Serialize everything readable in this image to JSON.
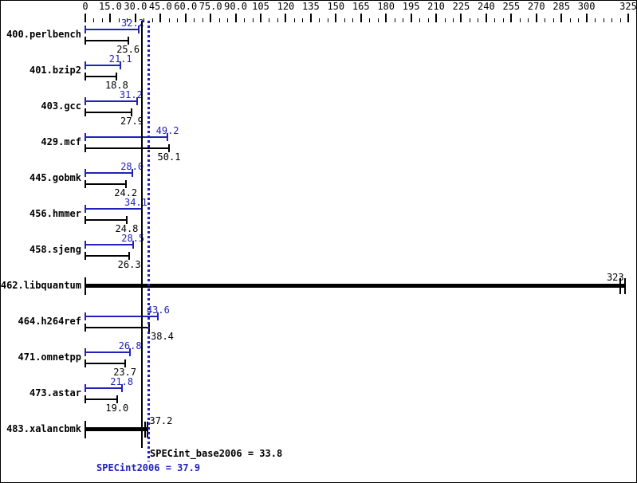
{
  "chart_data": {
    "type": "bar",
    "orientation": "horizontal",
    "axis": {
      "min": 0,
      "max": 325,
      "major_tick_step": 15,
      "minor_tick_step": 5,
      "major_tick_values": [
        0,
        15,
        30,
        45,
        60,
        75,
        90,
        105,
        120,
        135,
        150,
        165,
        180,
        195,
        210,
        225,
        240,
        255,
        270,
        285,
        300,
        325
      ],
      "major_tick_labels": [
        "0",
        "15.0",
        "30.0",
        "45.0",
        "60.0",
        "75.0",
        "90.0",
        "105",
        "120",
        "135",
        "150",
        "165",
        "180",
        "195",
        "210",
        "225",
        "240",
        "255",
        "270",
        "285",
        "300",
        "325"
      ]
    },
    "colors": {
      "peak": "#2222bb",
      "base": "#000000",
      "background": "#ffffff"
    },
    "grid": false,
    "legend": "none",
    "series": [
      {
        "name": "SPECint2006 (peak)",
        "color": "#2222bb"
      },
      {
        "name": "SPECint_base2006 (base)",
        "color": "#000000"
      }
    ],
    "benchmarks": [
      {
        "name": "400.perlbench",
        "peak": 32.2,
        "base": 25.6,
        "peak_label": "32.2",
        "base_label": "25.6",
        "peak_label_dx": -8
      },
      {
        "name": "401.bzip2",
        "peak": 21.1,
        "base": 18.8,
        "peak_label": "21.1",
        "base_label": "18.8"
      },
      {
        "name": "403.gcc",
        "peak": 31.2,
        "base": 27.9,
        "peak_label": "31.2",
        "base_label": "27.9",
        "peak_label_dx": -8
      },
      {
        "name": "429.mcf",
        "peak": 49.2,
        "base": 50.1,
        "peak_label": "49.2",
        "base_label": "50.1"
      },
      {
        "name": "445.gobmk",
        "peak": 28.0,
        "base": 24.2,
        "peak_label": "28.0",
        "base_label": "24.2"
      },
      {
        "name": "456.hmmer",
        "peak": 34.1,
        "base": 24.8,
        "peak_label": "34.1",
        "base_label": "24.8",
        "peak_label_dx": -8
      },
      {
        "name": "458.sjeng",
        "peak": 28.5,
        "base": 26.3,
        "peak_label": "28.5",
        "base_label": "26.3"
      },
      {
        "name": "462.libquantum",
        "base": 323,
        "base_label": "323",
        "merged": true,
        "caps": [
          320,
          323
        ],
        "base_label_dx": -12
      },
      {
        "name": "464.h264ref",
        "peak": 43.6,
        "base": 38.4,
        "peak_label": "43.6",
        "base_label": "38.4",
        "base_label_dx": 16
      },
      {
        "name": "471.omnetpp",
        "peak": 26.8,
        "base": 23.7,
        "peak_label": "26.8",
        "base_label": "23.7"
      },
      {
        "name": "473.astar",
        "peak": 21.8,
        "base": 19.0,
        "peak_label": "21.8",
        "base_label": "19.0"
      },
      {
        "name": "483.xalancbmk",
        "base": 37.2,
        "base_label": "37.2",
        "merged": true,
        "caps": [
          35.8,
          37.2
        ],
        "base_label_dx": 17
      }
    ],
    "reference_lines": [
      {
        "name": "SPECint_base2006",
        "value": 33.8,
        "color": "#000000",
        "style": "solid",
        "label": "SPECint_base2006 = 33.8"
      },
      {
        "name": "SPECint2006",
        "value": 37.9,
        "color": "#2222bb",
        "style": "dotted",
        "label": "SPECint2006 = 37.9"
      }
    ]
  }
}
